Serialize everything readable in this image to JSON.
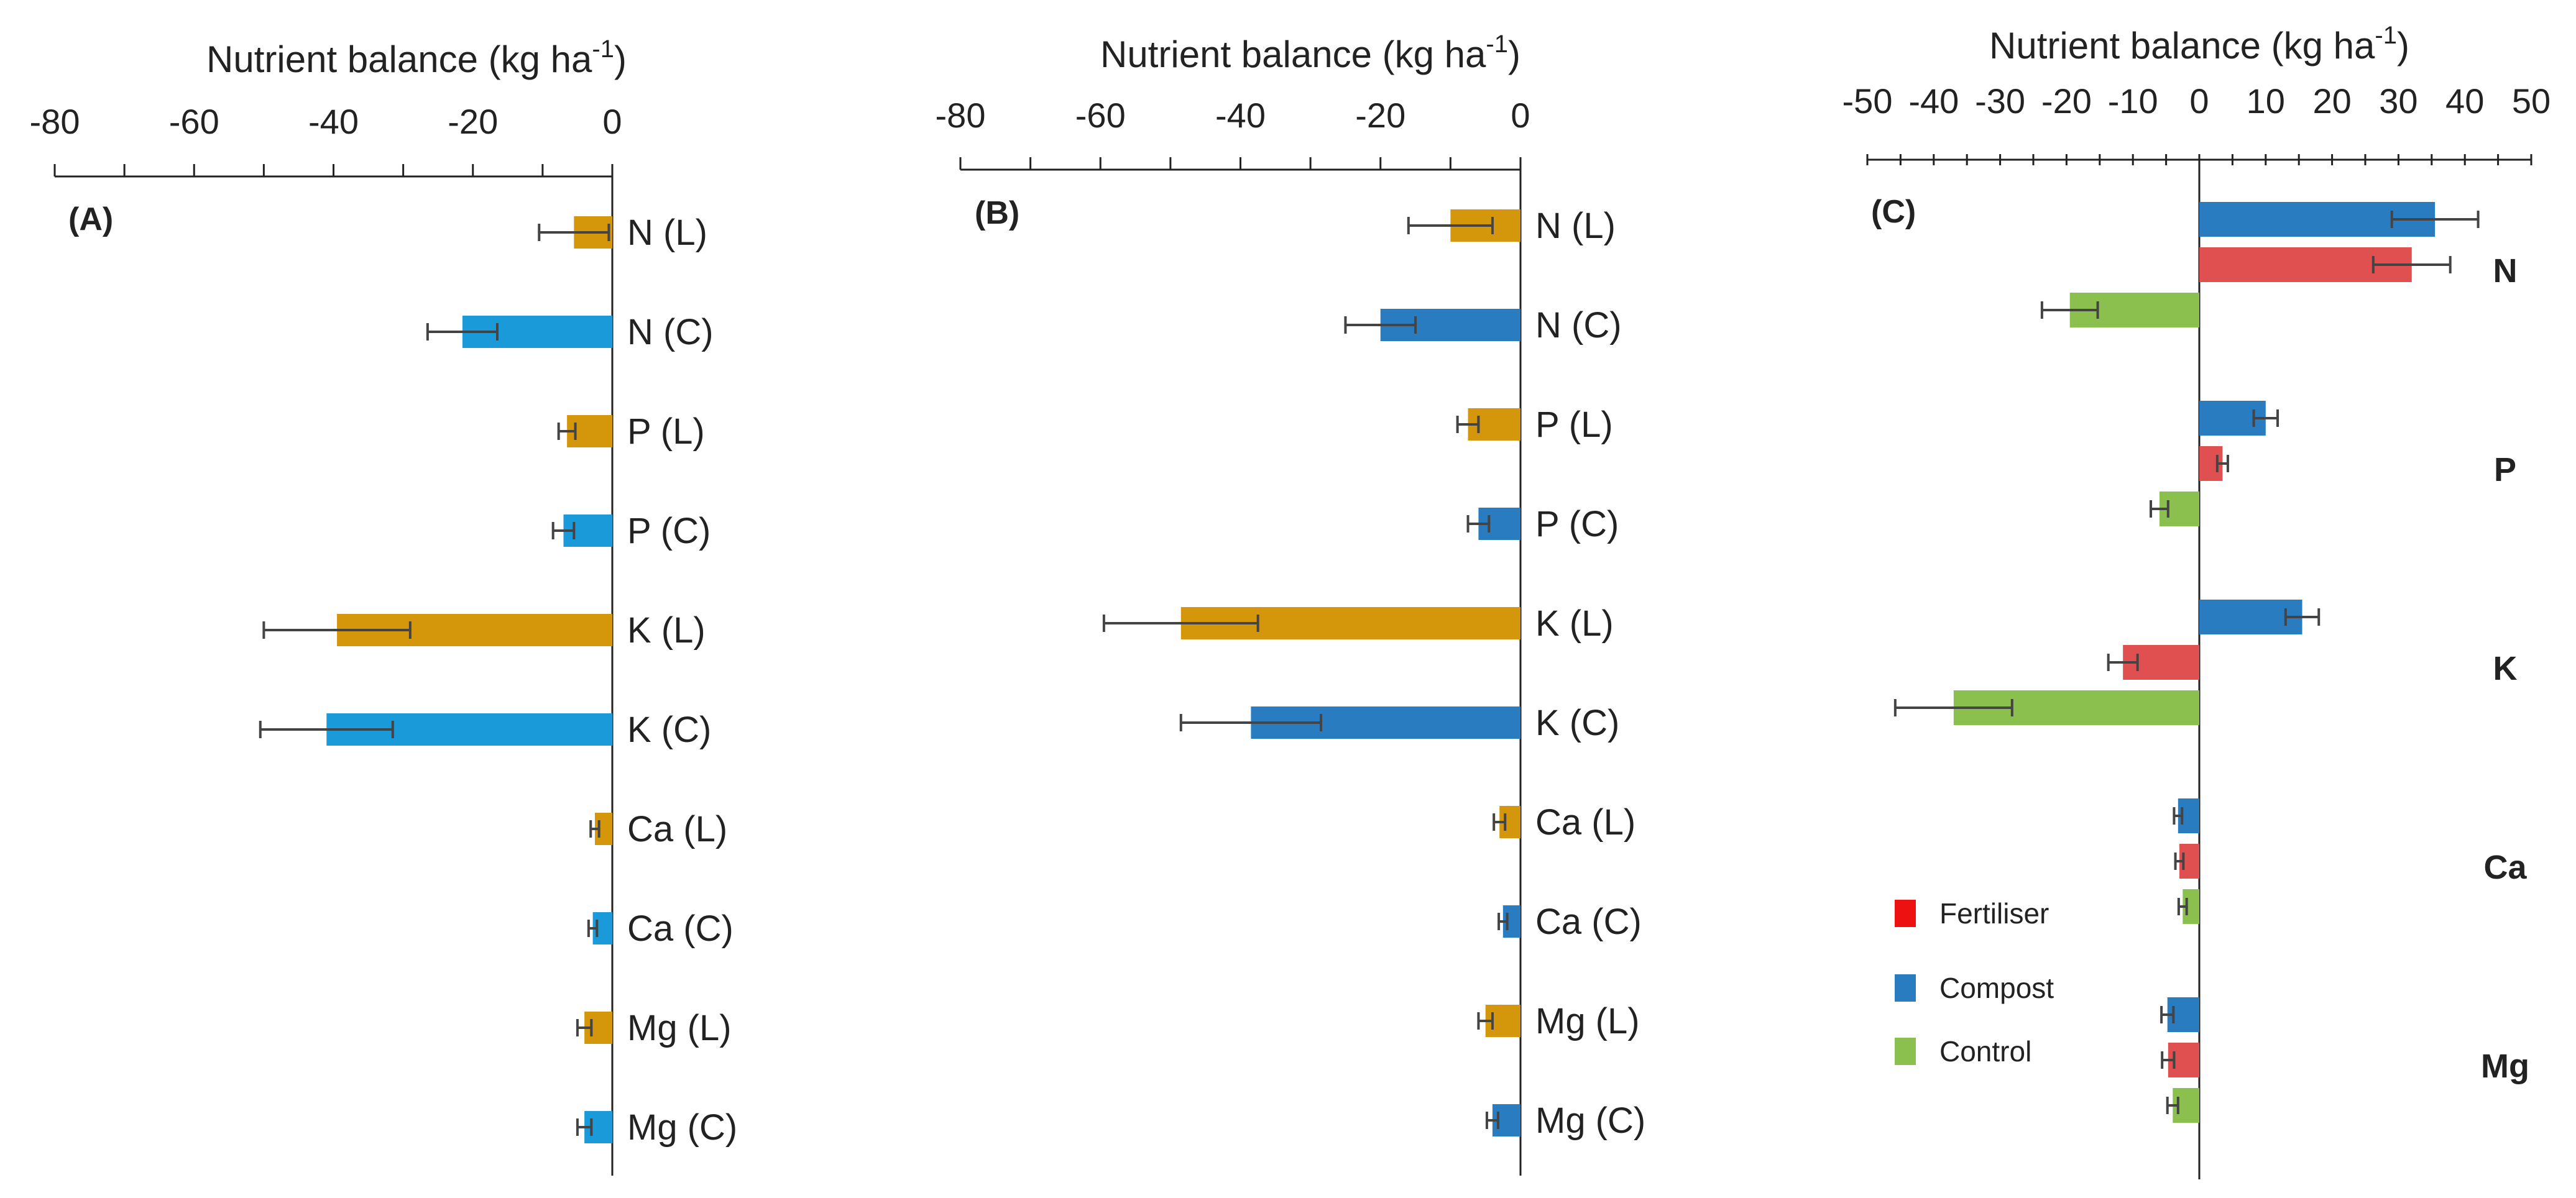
{
  "colors": {
    "orange": "#D4960A",
    "light_blue": "#1B9AD9",
    "blue": "#2A7CC0",
    "red": "#E05050",
    "green": "#8BBF4E",
    "legend_red": "#EE1111",
    "axis": "#222222",
    "error_bar": "#444444"
  },
  "chart_data": [
    {
      "type": "bar",
      "orientation": "horizontal",
      "panel_label": "(A)",
      "title": "Nutrient balance (kg ha-1)",
      "xlabel_main": "Nutrient balance (kg ha",
      "xlabel_sup": "-1",
      "xlabel_close": ")",
      "xlim": [
        -80,
        0
      ],
      "ticks": [
        "-80",
        "-60",
        "-40",
        "-20",
        "0"
      ],
      "tick_values": [
        -80,
        -60,
        -40,
        -20,
        0
      ],
      "categories": [
        "N (L)",
        "N (C)",
        "P (L)",
        "P (C)",
        "K (L)",
        "K (C)",
        "Ca (L)",
        "Ca (C)",
        "Mg (L)",
        "Mg (C)"
      ],
      "values": [
        -5.5,
        -21.5,
        -6.5,
        -7,
        -39.5,
        -41,
        -2.5,
        -2.8,
        -4,
        -4
      ],
      "errors": [
        5,
        5,
        1.2,
        1.5,
        10.5,
        9.5,
        0.6,
        0.6,
        1,
        1
      ],
      "color_keys": [
        "orange",
        "light_blue",
        "orange",
        "light_blue",
        "orange",
        "light_blue",
        "orange",
        "light_blue",
        "orange",
        "light_blue"
      ]
    },
    {
      "type": "bar",
      "orientation": "horizontal",
      "panel_label": "(B)",
      "title": "Nutrient balance (kg ha-1)",
      "xlabel_main": "Nutrient balance (kg ha",
      "xlabel_sup": "-1",
      "xlabel_close": ")",
      "xlim": [
        -80,
        0
      ],
      "ticks": [
        "-80",
        "-60",
        "-40",
        "-20",
        "0"
      ],
      "tick_values": [
        -80,
        -60,
        -40,
        -20,
        0
      ],
      "categories": [
        "N (L)",
        "N (C)",
        "P (L)",
        "P (C)",
        "K (L)",
        "K (C)",
        "Ca (L)",
        "Ca (C)",
        "Mg (L)",
        "Mg (C)"
      ],
      "values": [
        -10,
        -20,
        -7.5,
        -6,
        -48.5,
        -38.5,
        -3,
        -2.5,
        -5,
        -4
      ],
      "errors": [
        6,
        5,
        1.5,
        1.5,
        11,
        10,
        0.8,
        0.6,
        1,
        0.8
      ],
      "color_keys": [
        "orange",
        "blue",
        "orange",
        "blue",
        "orange",
        "blue",
        "orange",
        "blue",
        "orange",
        "blue"
      ]
    },
    {
      "type": "bar",
      "orientation": "horizontal",
      "panel_label": "(C)",
      "title": "Nutrient balance (kg ha-1)",
      "xlabel_main": "Nutrient balance (kg ha",
      "xlabel_sup": "-1",
      "xlabel_close": ")",
      "xlim": [
        -50,
        50
      ],
      "ticks": [
        "-50",
        "-40",
        "-30",
        "-20",
        "-10",
        "0",
        "10",
        "20",
        "30",
        "40",
        "50"
      ],
      "tick_values": [
        -50,
        -40,
        -30,
        -20,
        -10,
        0,
        10,
        20,
        30,
        40,
        50
      ],
      "groups": [
        "N",
        "P",
        "K",
        "Ca",
        "Mg"
      ],
      "series": [
        {
          "name": "Compost",
          "color_key": "blue",
          "values": [
            35.5,
            10,
            15.5,
            -3.2,
            -4.8
          ],
          "errors": [
            6.5,
            1.8,
            2.5,
            0.6,
            0.9
          ]
        },
        {
          "name": "Fertiliser",
          "color_key": "red",
          "values": [
            32,
            3.5,
            -11.5,
            -3,
            -4.7
          ],
          "errors": [
            5.8,
            0.8,
            2.2,
            0.6,
            0.9
          ]
        },
        {
          "name": "Control",
          "color_key": "green",
          "values": [
            -19.5,
            -6,
            -37,
            -2.5,
            -4
          ],
          "errors": [
            4.2,
            1.3,
            8.8,
            0.6,
            0.8
          ]
        }
      ],
      "legend": [
        {
          "label": "Fertiliser",
          "color_key": "legend_red"
        },
        {
          "label": "Compost",
          "color_key": "blue"
        },
        {
          "label": "Control",
          "color_key": "green"
        }
      ],
      "legend_position": "bottom-left"
    }
  ]
}
